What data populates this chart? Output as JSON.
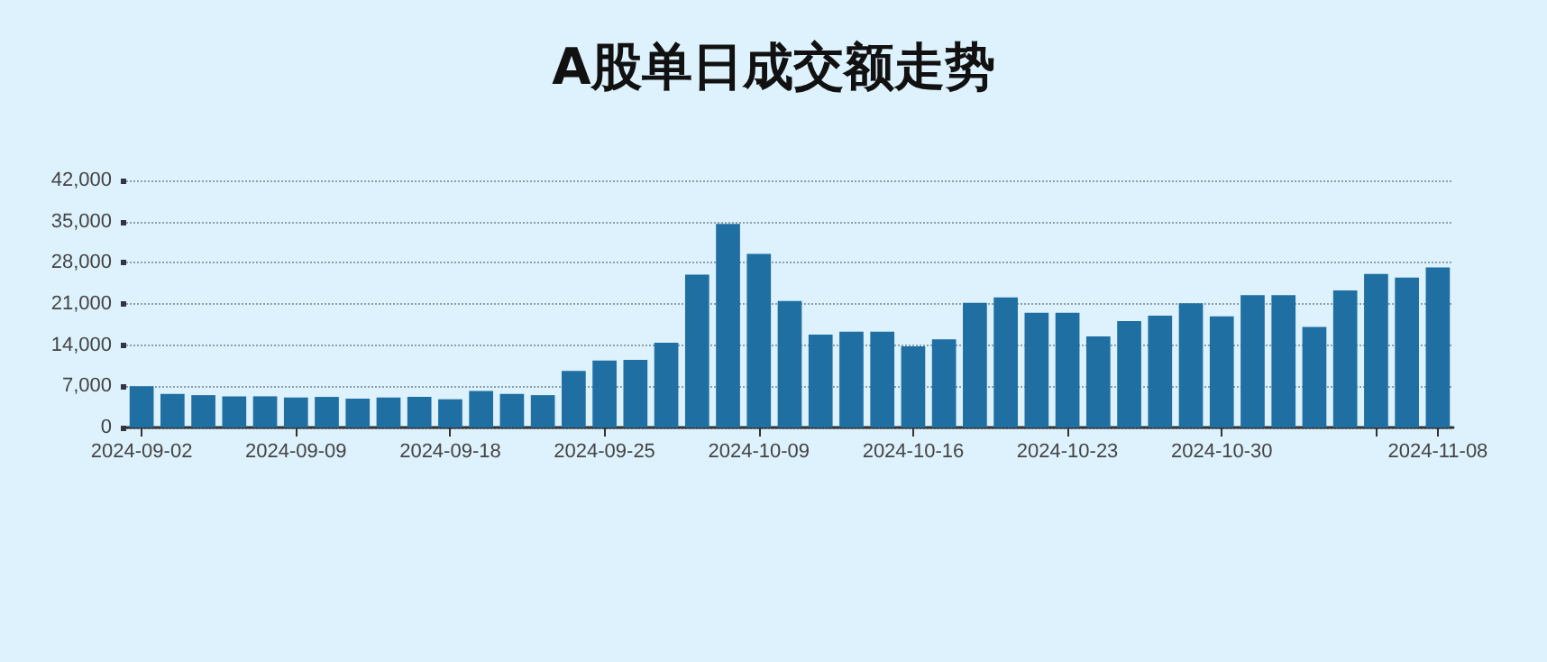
{
  "chart_data": {
    "type": "bar",
    "title": "A股单日成交额走势",
    "categories": [
      "2024-09-02",
      null,
      null,
      null,
      null,
      "2024-09-09",
      null,
      null,
      null,
      null,
      "2024-09-18",
      null,
      null,
      null,
      null,
      "2024-09-25",
      null,
      null,
      null,
      null,
      "2024-10-09",
      null,
      null,
      null,
      null,
      "2024-10-16",
      null,
      null,
      null,
      null,
      "2024-10-23",
      null,
      null,
      null,
      null,
      "2024-10-30",
      null,
      null,
      null,
      null,
      null,
      null,
      "2024-11-08"
    ],
    "values": [
      7000,
      5700,
      5500,
      5300,
      5300,
      5100,
      5200,
      4900,
      5100,
      5200,
      4800,
      6200,
      5700,
      5500,
      9600,
      11400,
      11500,
      14400,
      26000,
      34600,
      29500,
      21500,
      15800,
      16300,
      16300,
      13800,
      15000,
      21200,
      22100,
      19500,
      19500,
      15500,
      18100,
      19000,
      21100,
      18900,
      22500,
      22500,
      17100,
      23300,
      26100,
      25500,
      27200
    ],
    "color": "#1f6fa3",
    "ylim": [
      0,
      42000
    ],
    "yticks": [
      0,
      {
        "value": 7000,
        "label": "7,000"
      },
      {
        "value": 14000,
        "label": "14,000"
      },
      {
        "value": 21000,
        "label": "21,000"
      },
      {
        "value": 28000,
        "label": "28,000"
      },
      {
        "value": 35000,
        "label": "35,000"
      },
      {
        "value": 42000,
        "label": "42,000"
      }
    ],
    "grid": "y"
  }
}
